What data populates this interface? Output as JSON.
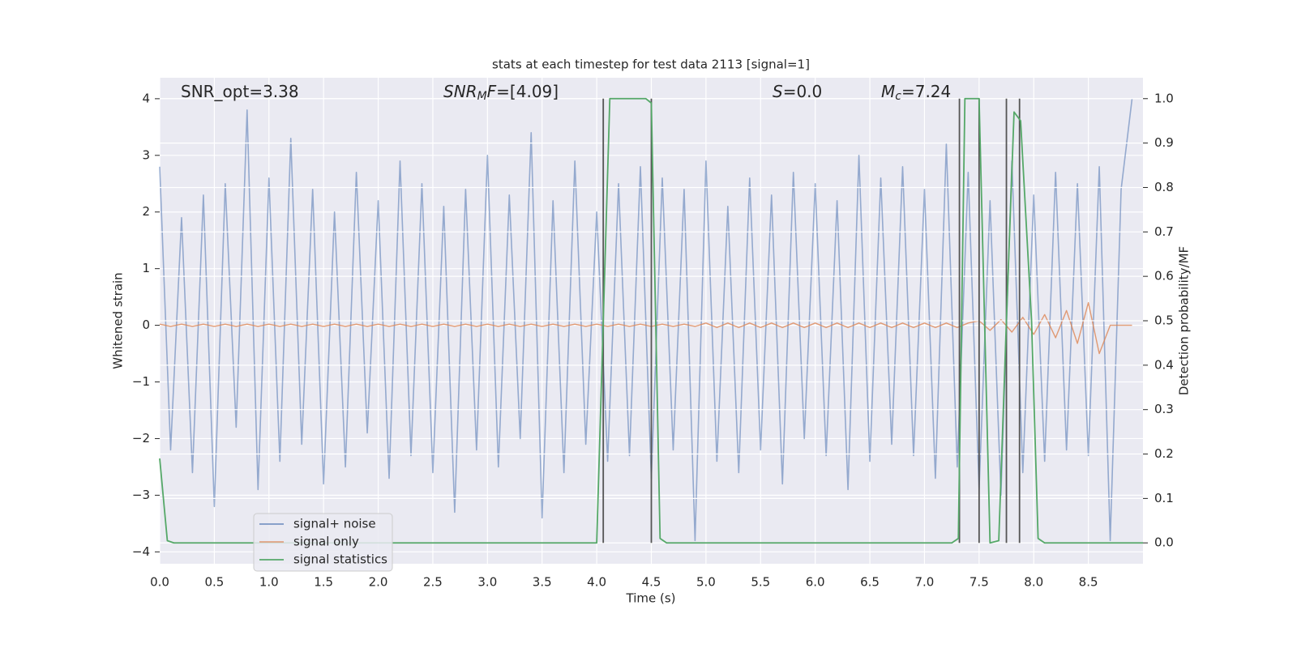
{
  "chart_data": {
    "type": "line",
    "title": "stats at each timestep for test data 2113 [signal=1]",
    "xlabel": "Time (s)",
    "ylabel": "Whitened strain",
    "y2label": "Detection probability/MF",
    "annotations": [
      [
        {
          "text": "SNR_opt=3.38",
          "style": "normal"
        }
      ],
      [
        {
          "text": "SNR",
          "style": "italic"
        },
        {
          "text": "M",
          "style": "sub"
        },
        {
          "text": "F",
          "style": "italic"
        },
        {
          "text": "=[4.09]",
          "style": "normal"
        }
      ],
      [
        {
          "text": "S",
          "style": "italic"
        },
        {
          "text": "=0.0",
          "style": "normal"
        }
      ],
      [
        {
          "text": "M",
          "style": "italic"
        },
        {
          "text": "c",
          "style": "sub"
        },
        {
          "text": "=7.24",
          "style": "normal"
        }
      ]
    ],
    "xlim": [
      0,
      9.0
    ],
    "ylim": [
      -4.21,
      4.37
    ],
    "y2lim": [
      -0.047,
      1.047
    ],
    "xticks": [
      {
        "value": 0,
        "label": "0.0"
      },
      {
        "value": 0.5,
        "label": "0.5"
      },
      {
        "value": 1,
        "label": "1.0"
      },
      {
        "value": 1.5,
        "label": "1.5"
      },
      {
        "value": 2,
        "label": "2.0"
      },
      {
        "value": 2.5,
        "label": "2.5"
      },
      {
        "value": 3,
        "label": "3.0"
      },
      {
        "value": 3.5,
        "label": "3.5"
      },
      {
        "value": 4,
        "label": "4.0"
      },
      {
        "value": 4.5,
        "label": "4.5"
      },
      {
        "value": 5,
        "label": "5.0"
      },
      {
        "value": 5.5,
        "label": "5.5"
      },
      {
        "value": 6,
        "label": "6.0"
      },
      {
        "value": 6.5,
        "label": "6.5"
      },
      {
        "value": 7,
        "label": "7.0"
      },
      {
        "value": 7.5,
        "label": "7.5"
      },
      {
        "value": 8,
        "label": "8.0"
      },
      {
        "value": 8.5,
        "label": "8.5"
      }
    ],
    "yticks": [
      {
        "value": -4,
        "label": "−4"
      },
      {
        "value": -3,
        "label": "−3"
      },
      {
        "value": -2,
        "label": "−2"
      },
      {
        "value": -1,
        "label": "−1"
      },
      0,
      1,
      2,
      3,
      4
    ],
    "y2ticks": [
      {
        "value": 0,
        "label": "0.0"
      },
      0.1,
      0.2,
      0.3,
      0.4,
      0.5,
      0.6,
      0.7,
      0.8,
      0.9,
      {
        "value": 1,
        "label": "1.0"
      }
    ],
    "grid": true,
    "legend": "lower left",
    "x": [
      0.0,
      0.1,
      0.2,
      0.3,
      0.4,
      0.5,
      0.6,
      0.7,
      0.8,
      0.9,
      1.0,
      1.1,
      1.2,
      1.3,
      1.4,
      1.5,
      1.6,
      1.7,
      1.8,
      1.9,
      2.0,
      2.1,
      2.2,
      2.3,
      2.4,
      2.5,
      2.6,
      2.7,
      2.8,
      2.9,
      3.0,
      3.1,
      3.2,
      3.3,
      3.4,
      3.5,
      3.6,
      3.7,
      3.8,
      3.9,
      4.0,
      4.1,
      4.2,
      4.3,
      4.4,
      4.5,
      4.6,
      4.7,
      4.8,
      4.9,
      5.0,
      5.1,
      5.2,
      5.3,
      5.4,
      5.5,
      5.6,
      5.7,
      5.8,
      5.9,
      6.0,
      6.1,
      6.2,
      6.3,
      6.4,
      6.5,
      6.6,
      6.7,
      6.8,
      6.9,
      7.0,
      7.1,
      7.2,
      7.3,
      7.4,
      7.5,
      7.6,
      7.7,
      7.8,
      7.9,
      8.0,
      8.1,
      8.2,
      8.3,
      8.4,
      8.5,
      8.6,
      8.7,
      8.8,
      8.9
    ],
    "series": [
      {
        "name": "signal+ noise",
        "color": "#4c72b0",
        "values": [
          2.8,
          -2.2,
          1.9,
          -2.6,
          2.3,
          -3.2,
          2.5,
          -1.8,
          3.8,
          -2.9,
          2.6,
          -2.4,
          3.3,
          -2.1,
          2.4,
          -2.8,
          2.0,
          -2.5,
          2.7,
          -1.9,
          2.2,
          -2.7,
          2.9,
          -2.3,
          2.5,
          -2.6,
          2.1,
          -3.3,
          2.4,
          -2.2,
          3.0,
          -2.5,
          2.3,
          -2.0,
          3.4,
          -3.4,
          2.2,
          -2.6,
          2.9,
          -2.1,
          2.0,
          -2.4,
          2.5,
          -2.3,
          2.8,
          -2.7,
          2.6,
          -2.2,
          2.4,
          -3.8,
          2.9,
          -2.4,
          2.1,
          -2.6,
          2.6,
          -2.2,
          2.3,
          -2.8,
          2.7,
          -2.0,
          2.5,
          -2.3,
          2.2,
          -2.9,
          3.0,
          -2.4,
          2.6,
          -2.1,
          2.8,
          -2.3,
          2.4,
          -2.7,
          3.2,
          -2.5,
          2.7,
          -2.9,
          2.2,
          -3.0,
          2.9,
          -2.6,
          2.3,
          -2.4,
          2.7,
          -2.2,
          2.5,
          -2.3,
          2.8,
          -3.8,
          2.4,
          4.0
        ]
      },
      {
        "name": "signal only",
        "color": "#dd8452",
        "values": [
          0.02,
          -0.02,
          0.02,
          -0.02,
          0.02,
          -0.02,
          0.02,
          -0.02,
          0.02,
          -0.02,
          0.02,
          -0.02,
          0.02,
          -0.02,
          0.02,
          -0.02,
          0.02,
          -0.02,
          0.02,
          -0.02,
          0.02,
          -0.02,
          0.02,
          -0.02,
          0.02,
          -0.02,
          0.02,
          -0.02,
          0.02,
          -0.02,
          0.02,
          -0.02,
          0.02,
          -0.02,
          0.02,
          -0.02,
          0.02,
          -0.02,
          0.02,
          -0.02,
          0.02,
          -0.02,
          0.02,
          -0.02,
          0.02,
          -0.02,
          0.02,
          -0.02,
          0.02,
          -0.02,
          0.04,
          -0.04,
          0.04,
          -0.04,
          0.04,
          -0.04,
          0.04,
          -0.04,
          0.04,
          -0.04,
          0.04,
          -0.04,
          0.04,
          -0.04,
          0.04,
          -0.04,
          0.04,
          -0.04,
          0.04,
          -0.04,
          0.04,
          -0.04,
          0.04,
          -0.04,
          0.04,
          0.08,
          -0.09,
          0.1,
          -0.12,
          0.14,
          -0.16,
          0.19,
          -0.22,
          0.26,
          -0.32,
          0.4,
          -0.5,
          0,
          0,
          0
        ]
      },
      {
        "name": "signal statistics",
        "color": "#55a868",
        "axis": "y2",
        "x": [
          0.0,
          0.07,
          0.13,
          4.0,
          4.06,
          4.12,
          4.45,
          4.5,
          4.58,
          4.64,
          7.25,
          7.31,
          7.37,
          7.5,
          7.6,
          7.68,
          7.75,
          7.82,
          7.88,
          7.98,
          8.04,
          8.1,
          9.0
        ],
        "values": [
          0.19,
          0.005,
          0.0,
          0.0,
          0.5,
          1.0,
          1.0,
          0.99,
          0.01,
          0.0,
          0.0,
          0.01,
          1.0,
          1.0,
          0.0,
          0.005,
          0.5,
          0.97,
          0.95,
          0.5,
          0.01,
          0.0,
          0.0
        ]
      }
    ],
    "vlines": {
      "color": "#555555",
      "axis": "y2",
      "items": [
        {
          "x": 4.06,
          "ymin": 0,
          "ymax": 1
        },
        {
          "x": 4.5,
          "ymin": 0,
          "ymax": 1
        },
        {
          "x": 7.32,
          "ymin": 0,
          "ymax": 1
        },
        {
          "x": 7.5,
          "ymin": 0,
          "ymax": 1
        },
        {
          "x": 7.75,
          "ymin": 0,
          "ymax": 1
        },
        {
          "x": 7.87,
          "ymin": 0,
          "ymax": 1
        }
      ]
    }
  }
}
